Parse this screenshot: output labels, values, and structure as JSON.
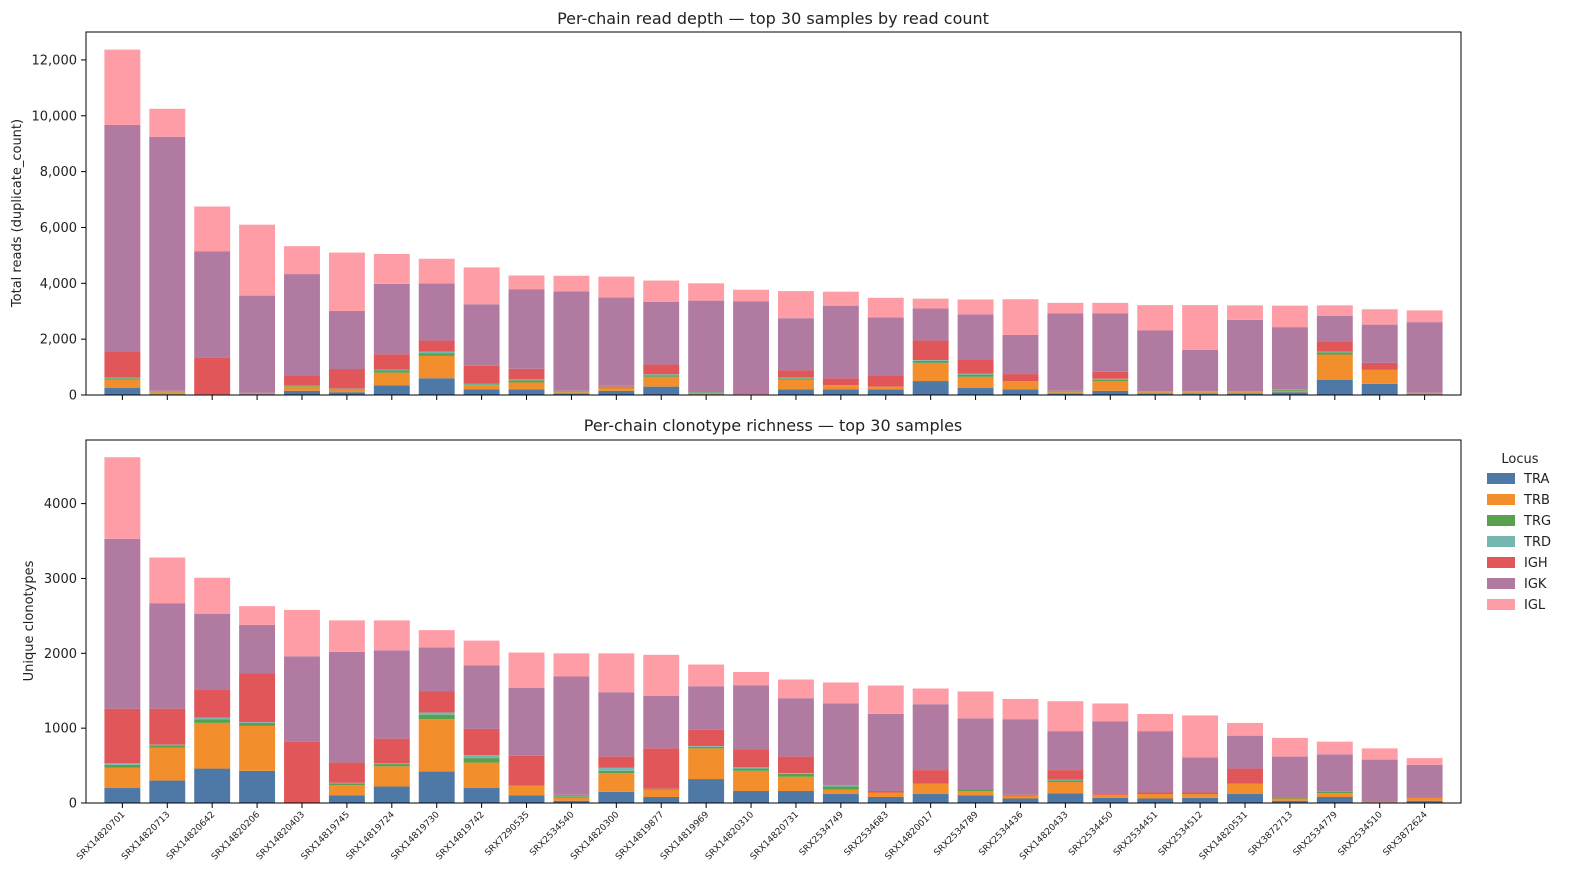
{
  "colors": {
    "TRA": "#4e79a7",
    "TRB": "#f28e2b",
    "TRG": "#59a14f",
    "TRD": "#76b7b2",
    "IGH": "#e15759",
    "IGK": "#b07aa1",
    "IGL": "#ff9da7"
  },
  "legend": {
    "title": "Locus",
    "placement": "right, outside plot",
    "entries": [
      "TRA",
      "TRB",
      "TRG",
      "TRD",
      "IGH",
      "IGK",
      "IGL"
    ]
  },
  "chart_data": [
    {
      "type": "bar",
      "stacked": true,
      "title": "Per-chain read depth — top 30 samples by read count",
      "xlabel": "",
      "ylabel": "Total reads (duplicate_count)",
      "ylim": [
        0,
        13000
      ],
      "yticks": [
        0,
        2000,
        4000,
        6000,
        8000,
        10000,
        12000
      ],
      "ytick_labels": [
        "0",
        "2,000",
        "4,000",
        "6,000",
        "8,000",
        "10,000",
        "12,000"
      ],
      "show_xtick_labels": false,
      "grid": false,
      "categories": [
        "SRX14820701",
        "SRX14820713",
        "SRX14820642",
        "SRX14820206",
        "SRX14820403",
        "SRX14819745",
        "SRX14819724",
        "SRX14819730",
        "SRX14819742",
        "SRX7290535",
        "SRX2534540",
        "SRX14820300",
        "SRX14819877",
        "SRX14819969",
        "SRX14820310",
        "SRX14820731",
        "SRX2534749",
        "SRX2534683",
        "SRX14820017",
        "SRX2534789",
        "SRX2534436",
        "SRX14820433",
        "SRX2534450",
        "SRX2534451",
        "SRX2534512",
        "SRX14820531",
        "SRX3872713",
        "SRX2534779",
        "SRX2534510",
        "SRX3872624"
      ],
      "series": [
        {
          "name": "TRA",
          "values": [
            250,
            30,
            10,
            30,
            150,
            100,
            350,
            600,
            200,
            200,
            50,
            150,
            300,
            30,
            10,
            200,
            200,
            200,
            500,
            250,
            200,
            50,
            150,
            50,
            50,
            50,
            100,
            550,
            400,
            30
          ]
        },
        {
          "name": "TRB",
          "values": [
            300,
            70,
            10,
            20,
            150,
            100,
            450,
            800,
            150,
            250,
            50,
            100,
            350,
            40,
            10,
            350,
            150,
            100,
            650,
            400,
            300,
            50,
            350,
            50,
            50,
            50,
            50,
            900,
            500,
            50
          ]
        },
        {
          "name": "TRG",
          "values": [
            50,
            20,
            0,
            10,
            20,
            20,
            80,
            100,
            30,
            80,
            30,
            30,
            60,
            20,
            0,
            50,
            0,
            0,
            70,
            80,
            0,
            30,
            50,
            20,
            20,
            20,
            30,
            80,
            0,
            0
          ]
        },
        {
          "name": "TRD",
          "values": [
            20,
            10,
            0,
            0,
            10,
            10,
            30,
            50,
            20,
            30,
            20,
            20,
            30,
            10,
            0,
            30,
            0,
            0,
            30,
            40,
            0,
            20,
            30,
            10,
            20,
            10,
            20,
            30,
            0,
            0
          ]
        },
        {
          "name": "IGH",
          "values": [
            950,
            20,
            1330,
            20,
            350,
            700,
            550,
            400,
            650,
            380,
            0,
            30,
            350,
            0,
            10,
            250,
            250,
            380,
            700,
            500,
            250,
            0,
            250,
            0,
            0,
            0,
            0,
            360,
            250,
            0
          ]
        },
        {
          "name": "IGK",
          "values": [
            8100,
            9100,
            3800,
            3480,
            3650,
            2080,
            2520,
            2050,
            2200,
            2850,
            3560,
            3160,
            2250,
            3280,
            3320,
            1870,
            2600,
            2100,
            1150,
            1620,
            1400,
            2770,
            2090,
            2180,
            1480,
            2560,
            2230,
            910,
            1370,
            2530
          ]
        },
        {
          "name": "IGL",
          "values": [
            2700,
            1000,
            1600,
            2540,
            1000,
            2090,
            1070,
            880,
            1320,
            490,
            560,
            750,
            760,
            620,
            420,
            970,
            500,
            700,
            350,
            530,
            1280,
            380,
            380,
            910,
            1600,
            520,
            770,
            380,
            550,
            420
          ]
        }
      ]
    },
    {
      "type": "bar",
      "stacked": true,
      "title": "Per-chain clonotype richness — top 30 samples",
      "xlabel": "",
      "ylabel": "Unique clonotypes",
      "ylim": [
        0,
        4850
      ],
      "yticks": [
        0,
        1000,
        2000,
        3000,
        4000
      ],
      "ytick_labels": [
        "0",
        "1000",
        "2000",
        "3000",
        "4000"
      ],
      "show_xtick_labels": true,
      "grid": false,
      "categories": [
        "SRX14820701",
        "SRX14820713",
        "SRX14820642",
        "SRX14820206",
        "SRX14820403",
        "SRX14819745",
        "SRX14819724",
        "SRX14819730",
        "SRX14819742",
        "SRX7290535",
        "SRX2534540",
        "SRX14820300",
        "SRX14819877",
        "SRX14819969",
        "SRX14820310",
        "SRX14820731",
        "SRX2534749",
        "SRX2534683",
        "SRX14820017",
        "SRX2534789",
        "SRX2534436",
        "SRX14820433",
        "SRX2534450",
        "SRX2534451",
        "SRX2534512",
        "SRX14820531",
        "SRX3872713",
        "SRX2534779",
        "SRX2534510",
        "SRX3872624"
      ],
      "series": [
        {
          "name": "TRA",
          "values": [
            200,
            300,
            460,
            430,
            0,
            100,
            220,
            420,
            200,
            100,
            30,
            150,
            80,
            320,
            160,
            160,
            120,
            80,
            120,
            100,
            60,
            130,
            70,
            60,
            70,
            120,
            30,
            80,
            10,
            30
          ]
        },
        {
          "name": "TRB",
          "values": [
            270,
            440,
            610,
            600,
            0,
            140,
            270,
            700,
            340,
            130,
            40,
            250,
            100,
            410,
            270,
            190,
            60,
            60,
            140,
            60,
            40,
            150,
            40,
            60,
            50,
            140,
            30,
            50,
            10,
            40
          ]
        },
        {
          "name": "TRG",
          "values": [
            40,
            30,
            50,
            40,
            0,
            20,
            30,
            60,
            60,
            0,
            20,
            30,
            10,
            20,
            30,
            40,
            40,
            0,
            0,
            20,
            0,
            20,
            0,
            0,
            0,
            0,
            10,
            20,
            0,
            0
          ]
        },
        {
          "name": "TRD",
          "values": [
            20,
            10,
            20,
            10,
            0,
            10,
            10,
            30,
            40,
            0,
            10,
            40,
            0,
            10,
            20,
            10,
            20,
            0,
            0,
            0,
            0,
            10,
            0,
            0,
            0,
            0,
            0,
            0,
            0,
            0
          ]
        },
        {
          "name": "IGH",
          "values": [
            730,
            480,
            370,
            650,
            820,
            270,
            330,
            280,
            350,
            400,
            10,
            150,
            540,
            220,
            240,
            220,
            0,
            20,
            180,
            0,
            10,
            130,
            10,
            20,
            20,
            200,
            10,
            0,
            0,
            10
          ]
        },
        {
          "name": "IGK",
          "values": [
            2270,
            1410,
            1020,
            650,
            1140,
            1480,
            1180,
            590,
            850,
            910,
            1580,
            860,
            700,
            580,
            850,
            780,
            1090,
            1030,
            880,
            950,
            1010,
            520,
            970,
            820,
            470,
            440,
            540,
            500,
            560,
            430
          ]
        },
        {
          "name": "IGL",
          "values": [
            1090,
            610,
            480,
            250,
            620,
            420,
            400,
            230,
            330,
            470,
            310,
            520,
            550,
            290,
            180,
            250,
            280,
            380,
            210,
            360,
            270,
            400,
            240,
            230,
            560,
            170,
            250,
            170,
            150,
            90
          ]
        }
      ]
    }
  ]
}
